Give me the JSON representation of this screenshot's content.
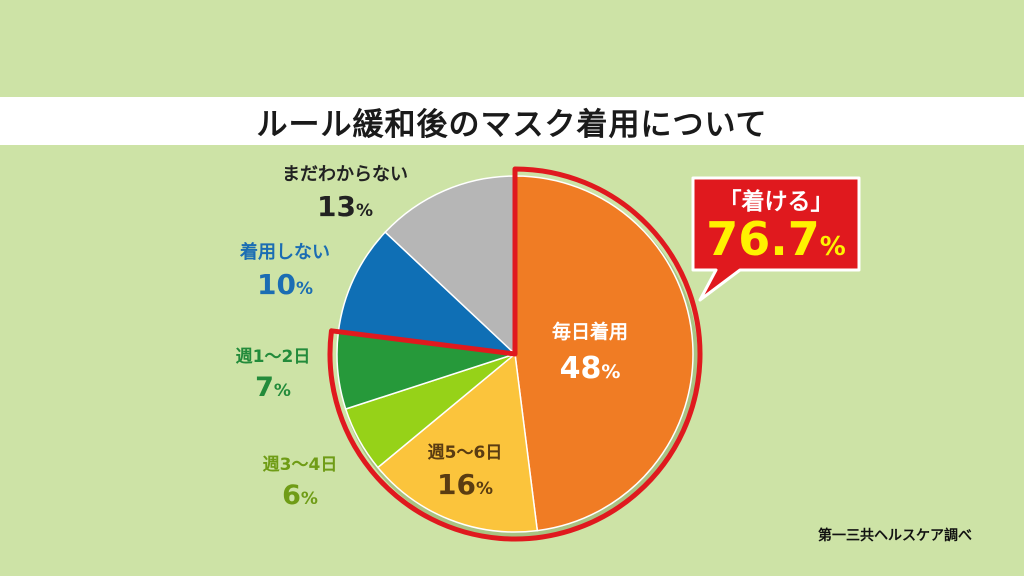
{
  "title": "ルール緩和後のマスク着用について",
  "source": "第一三共ヘルスケア調べ",
  "callout": {
    "label": "「着ける」",
    "value": "76.7",
    "unit": "%"
  },
  "colors": {
    "background": "#cde3a6",
    "highlight_outline": "#e0191e",
    "callout_fill": "#e0191e",
    "callout_value": "#fff200"
  },
  "chart_data": {
    "type": "pie",
    "title": "ルール緩和後のマスク着用について",
    "unit": "%",
    "slices": [
      {
        "label": "毎日着用",
        "value": 48,
        "color": "#f07c24",
        "label_color": "#ffffff",
        "highlighted": true
      },
      {
        "label": "週5〜6日",
        "value": 16,
        "color": "#fbc43c",
        "label_color": "#5a3c12",
        "highlighted": true
      },
      {
        "label": "週3〜4日",
        "value": 6,
        "color": "#96d218",
        "label_color": "#6f9c16",
        "highlighted": true
      },
      {
        "label": "週1〜2日",
        "value": 7,
        "color": "#26993a",
        "label_color": "#238b3b",
        "highlighted": true
      },
      {
        "label": "着用しない",
        "value": 10,
        "color": "#0f6fb5",
        "label_color": "#1b6db3",
        "highlighted": false
      },
      {
        "label": "まだわからない",
        "value": 13,
        "color": "#b6b6b6",
        "label_color": "#222222",
        "highlighted": false
      }
    ]
  }
}
